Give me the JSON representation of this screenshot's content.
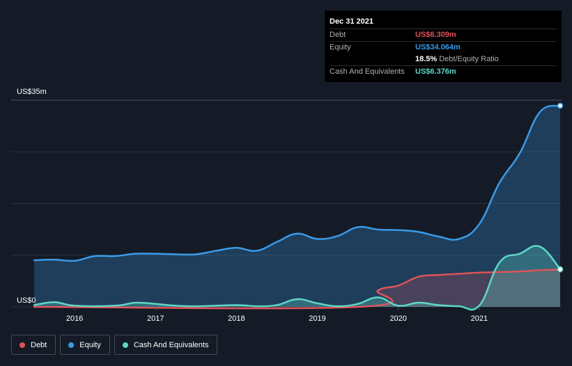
{
  "chart_data": {
    "type": "area",
    "title": "",
    "xlabel": "",
    "ylabel": "",
    "ylim": [
      0,
      35
    ],
    "y_tick_labels": {
      "top": "US$35m",
      "bottom": "US$0"
    },
    "x_ticks": [
      {
        "value": 2016,
        "label": "2016"
      },
      {
        "value": 2017,
        "label": "2017"
      },
      {
        "value": 2018,
        "label": "2018"
      },
      {
        "value": 2019,
        "label": "2019"
      },
      {
        "value": 2020,
        "label": "2020"
      },
      {
        "value": 2021,
        "label": "2021"
      }
    ],
    "xlim": [
      2015.5,
      2022.0
    ],
    "series": [
      {
        "name": "Equity",
        "color": "#3a9be8",
        "points": [
          [
            2015.5,
            7.9
          ],
          [
            2015.75,
            8.0
          ],
          [
            2016.0,
            7.8
          ],
          [
            2016.25,
            8.6
          ],
          [
            2016.5,
            8.6
          ],
          [
            2016.75,
            9.0
          ],
          [
            2017.0,
            9.0
          ],
          [
            2017.25,
            8.9
          ],
          [
            2017.5,
            8.9
          ],
          [
            2017.75,
            9.5
          ],
          [
            2018.0,
            10.0
          ],
          [
            2018.25,
            9.5
          ],
          [
            2018.5,
            11.0
          ],
          [
            2018.75,
            12.4
          ],
          [
            2019.0,
            11.5
          ],
          [
            2019.25,
            12.0
          ],
          [
            2019.5,
            13.5
          ],
          [
            2019.75,
            13.1
          ],
          [
            2020.0,
            13.0
          ],
          [
            2020.25,
            12.7
          ],
          [
            2020.5,
            11.9
          ],
          [
            2020.75,
            11.5
          ],
          [
            2021.0,
            14.0
          ],
          [
            2021.25,
            21.0
          ],
          [
            2021.5,
            26.0
          ],
          [
            2021.75,
            33.0
          ],
          [
            2022.0,
            34.064
          ]
        ]
      },
      {
        "name": "Debt",
        "color": "#e0535a",
        "points": [
          [
            2015.5,
            0.0
          ],
          [
            2019.5,
            0.0
          ],
          [
            2019.75,
            2.8
          ],
          [
            2020.0,
            3.6
          ],
          [
            2020.25,
            5.1
          ],
          [
            2020.5,
            5.4
          ],
          [
            2020.75,
            5.6
          ],
          [
            2021.0,
            5.8
          ],
          [
            2021.25,
            5.9
          ],
          [
            2021.5,
            6.0
          ],
          [
            2021.75,
            6.2
          ],
          [
            2022.0,
            6.309
          ]
        ]
      },
      {
        "name": "Cash And Equivalents",
        "color": "#5fd8c6",
        "points": [
          [
            2015.5,
            0.3
          ],
          [
            2015.75,
            0.8
          ],
          [
            2016.0,
            0.2
          ],
          [
            2016.5,
            0.2
          ],
          [
            2016.75,
            0.7
          ],
          [
            2017.0,
            0.5
          ],
          [
            2017.25,
            0.2
          ],
          [
            2017.5,
            0.1
          ],
          [
            2018.0,
            0.3
          ],
          [
            2018.25,
            0.1
          ],
          [
            2018.5,
            0.3
          ],
          [
            2018.75,
            1.3
          ],
          [
            2019.0,
            0.6
          ],
          [
            2019.25,
            0.1
          ],
          [
            2019.5,
            0.5
          ],
          [
            2019.75,
            1.6
          ],
          [
            2020.0,
            0.2
          ],
          [
            2020.25,
            0.7
          ],
          [
            2020.5,
            0.3
          ],
          [
            2020.75,
            0.1
          ],
          [
            2021.0,
            0.2
          ],
          [
            2021.25,
            7.5
          ],
          [
            2021.5,
            9.0
          ],
          [
            2021.75,
            10.2
          ],
          [
            2022.0,
            6.376
          ]
        ]
      }
    ]
  },
  "tooltip": {
    "date": "Dec 31 2021",
    "debt_label": "Debt",
    "debt_value": "US$6.309m",
    "equity_label": "Equity",
    "equity_value": "US$34.064m",
    "ratio_value": "18.5%",
    "ratio_label": "Debt/Equity Ratio",
    "cash_label": "Cash And Equivalents",
    "cash_value": "US$6.376m"
  },
  "legend": [
    {
      "label": "Debt",
      "color": "#e0535a"
    },
    {
      "label": "Equity",
      "color": "#3a9be8"
    },
    {
      "label": "Cash And Equivalents",
      "color": "#5fd8c6"
    }
  ]
}
